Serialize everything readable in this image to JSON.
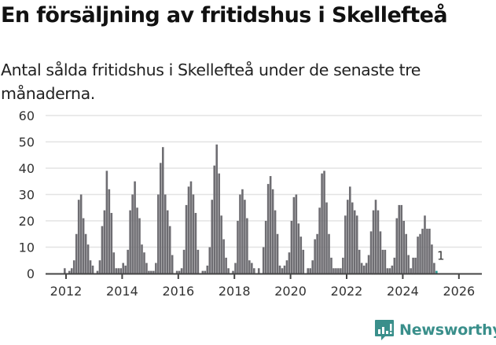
{
  "header": {
    "title": "En försäljning av fritidshus i Skellefteå",
    "subtitle": "Antal sålda fritidshus i Skellefteå under de senaste tre månaderna."
  },
  "branding": {
    "name": "Newsworthy",
    "icon": "newsworthy-chart-bubble-icon",
    "color": "#3a8f8b"
  },
  "colors": {
    "bar": "#6e6d72",
    "highlight": "#2a9d95",
    "grid": "#e3e3e3",
    "axis": "#444444",
    "text": "#333333"
  },
  "chart_data": {
    "type": "bar",
    "title": "En försäljning av fritidshus i Skellefteå",
    "subtitle": "Antal sålda fritidshus i Skellefteå under de senaste tre månaderna.",
    "xlabel": "",
    "ylabel": "",
    "ylim": [
      0,
      60
    ],
    "yticks": [
      0,
      10,
      20,
      30,
      40,
      50,
      60
    ],
    "xticks": [
      "2012",
      "2014",
      "2016",
      "2018",
      "2020",
      "2022",
      "2024",
      "2026"
    ],
    "grid": true,
    "legend": null,
    "start_month": "2011-12",
    "frequency": "monthly (rolling 3 months)",
    "values": [
      2,
      0,
      1,
      2,
      5,
      15,
      28,
      30,
      21,
      15,
      11,
      5,
      3,
      0,
      1,
      5,
      18,
      24,
      39,
      32,
      23,
      8,
      2,
      2,
      2,
      4,
      3,
      9,
      24,
      30,
      35,
      25,
      21,
      11,
      8,
      4,
      1,
      1,
      1,
      4,
      30,
      42,
      48,
      30,
      24,
      18,
      7,
      0,
      1,
      1,
      2,
      9,
      26,
      33,
      35,
      30,
      23,
      9,
      0,
      1,
      1,
      3,
      10,
      28,
      41,
      49,
      38,
      22,
      13,
      6,
      2,
      0,
      1,
      4,
      20,
      30,
      32,
      28,
      21,
      5,
      4,
      2,
      0,
      2,
      0,
      10,
      20,
      34,
      37,
      32,
      24,
      15,
      3,
      2,
      3,
      5,
      8,
      20,
      29,
      30,
      19,
      14,
      9,
      0,
      2,
      2,
      5,
      13,
      15,
      25,
      38,
      39,
      27,
      15,
      6,
      2,
      2,
      2,
      2,
      6,
      22,
      28,
      33,
      27,
      24,
      22,
      9,
      4,
      3,
      4,
      7,
      16,
      24,
      28,
      24,
      16,
      9,
      9,
      2,
      2,
      3,
      6,
      21,
      26,
      26,
      20,
      15,
      7,
      2,
      6,
      6,
      14,
      15,
      17,
      22,
      17,
      17,
      11,
      4,
      1
    ],
    "annotations": [
      {
        "label": "1",
        "at": "last",
        "value": 1
      }
    ],
    "highlight_last": true
  }
}
